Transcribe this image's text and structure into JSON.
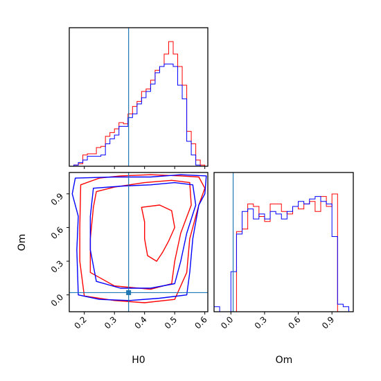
{
  "chart_data": {
    "type": "corner",
    "truth": {
      "H0": 0.347,
      "Om": 0.02
    },
    "colors": {
      "series_a": "#ff0000",
      "series_b": "#0000ff",
      "truth": "#1f77b4"
    },
    "panels": [
      {
        "id": "H0-hist",
        "type": "step-histogram",
        "xlim": [
          0.15,
          0.61
        ],
        "bin_edges": [
          0.15,
          0.165,
          0.18,
          0.195,
          0.21,
          0.225,
          0.24,
          0.255,
          0.27,
          0.285,
          0.3,
          0.315,
          0.33,
          0.345,
          0.36,
          0.375,
          0.39,
          0.405,
          0.42,
          0.435,
          0.45,
          0.465,
          0.48,
          0.495,
          0.51,
          0.525,
          0.54,
          0.555,
          0.57,
          0.585,
          0.6
        ],
        "series": [
          {
            "color": "red",
            "counts": [
              0.0,
              0.01,
              0.02,
              0.09,
              0.1,
              0.1,
              0.15,
              0.16,
              0.24,
              0.27,
              0.3,
              0.35,
              0.34,
              0.42,
              0.48,
              0.52,
              0.6,
              0.62,
              0.69,
              0.77,
              0.8,
              0.9,
              1.0,
              0.9,
              0.8,
              0.65,
              0.28,
              0.18,
              0.05,
              0.01
            ]
          },
          {
            "color": "blue",
            "counts": [
              0.0,
              0.01,
              0.03,
              0.05,
              0.08,
              0.08,
              0.08,
              0.09,
              0.18,
              0.22,
              0.25,
              0.32,
              0.32,
              0.39,
              0.42,
              0.5,
              0.55,
              0.6,
              0.66,
              0.75,
              0.8,
              0.82,
              0.82,
              0.8,
              0.65,
              0.54,
              0.2,
              0.09,
              0.01,
              0.0
            ]
          }
        ]
      },
      {
        "id": "H0-Om-contour",
        "type": "contour",
        "xlim": [
          0.15,
          0.61
        ],
        "ylim": [
          -0.15,
          1.09
        ],
        "xticks": [
          "0.2",
          "0.3",
          "0.4",
          "0.5",
          "0.6"
        ],
        "yticks": [
          "0.0",
          "0.3",
          "0.6",
          "0.9"
        ],
        "xlabel": "H0",
        "ylabel": "Om",
        "series": [
          {
            "color": "red",
            "contours": [
              [
                [
                  0.188,
                  0.98
                ],
                [
                  0.25,
                  1.04
                ],
                [
                  0.32,
                  1.06
                ],
                [
                  0.42,
                  1.07
                ],
                [
                  0.52,
                  1.06
                ],
                [
                  0.58,
                  1.05
                ],
                [
                  0.6,
                  0.95
                ],
                [
                  0.58,
                  0.8
                ],
                [
                  0.55,
                  0.5
                ],
                [
                  0.54,
                  0.2
                ],
                [
                  0.5,
                  -0.04
                ],
                [
                  0.4,
                  -0.07
                ],
                [
                  0.3,
                  -0.05
                ],
                [
                  0.2,
                  -0.01
                ],
                [
                  0.185,
                  0.3
                ],
                [
                  0.185,
                  0.6
                ]
              ],
              [
                [
                  0.24,
                  0.92
                ],
                [
                  0.3,
                  0.96
                ],
                [
                  0.4,
                  1.0
                ],
                [
                  0.49,
                  1.02
                ],
                [
                  0.55,
                  1.0
                ],
                [
                  0.555,
                  0.8
                ],
                [
                  0.52,
                  0.55
                ],
                [
                  0.5,
                  0.3
                ],
                [
                  0.49,
                  0.1
                ],
                [
                  0.42,
                  0.05
                ],
                [
                  0.3,
                  0.08
                ],
                [
                  0.22,
                  0.2
                ],
                [
                  0.22,
                  0.5
                ],
                [
                  0.23,
                  0.78
                ]
              ],
              [
                [
                  0.39,
                  0.78
                ],
                [
                  0.45,
                  0.8
                ],
                [
                  0.49,
                  0.75
                ],
                [
                  0.5,
                  0.6
                ],
                [
                  0.48,
                  0.48
                ],
                [
                  0.46,
                  0.38
                ],
                [
                  0.44,
                  0.3
                ],
                [
                  0.41,
                  0.35
                ],
                [
                  0.4,
                  0.5
                ],
                [
                  0.4,
                  0.65
                ]
              ]
            ]
          },
          {
            "color": "blue",
            "contours": [
              [
                [
                  0.17,
                  1.04
                ],
                [
                  0.3,
                  1.05
                ],
                [
                  0.42,
                  1.05
                ],
                [
                  0.52,
                  1.07
                ],
                [
                  0.605,
                  1.06
                ],
                [
                  0.6,
                  0.9
                ],
                [
                  0.58,
                  0.8
                ],
                [
                  0.56,
                  0.5
                ],
                [
                  0.55,
                  0.2
                ],
                [
                  0.54,
                  0.0
                ],
                [
                  0.45,
                  -0.03
                ],
                [
                  0.35,
                  -0.05
                ],
                [
                  0.25,
                  -0.04
                ],
                [
                  0.18,
                  0.0
                ],
                [
                  0.175,
                  0.4
                ],
                [
                  0.18,
                  0.7
                ],
                [
                  0.16,
                  0.9
                ]
              ],
              [
                [
                  0.23,
                  0.95
                ],
                [
                  0.33,
                  0.97
                ],
                [
                  0.42,
                  0.98
                ],
                [
                  0.5,
                  1.0
                ],
                [
                  0.56,
                  0.98
                ],
                [
                  0.57,
                  0.8
                ],
                [
                  0.54,
                  0.55
                ],
                [
                  0.52,
                  0.3
                ],
                [
                  0.5,
                  0.1
                ],
                [
                  0.42,
                  0.06
                ],
                [
                  0.32,
                  0.06
                ],
                [
                  0.24,
                  0.12
                ],
                [
                  0.22,
                  0.4
                ],
                [
                  0.22,
                  0.7
                ]
              ]
            ]
          }
        ]
      },
      {
        "id": "Om-hist",
        "type": "step-histogram",
        "xlim": [
          -0.15,
          1.09
        ],
        "xticks": [
          "0.0",
          "0.3",
          "0.6",
          "0.9"
        ],
        "xlabel": "Om",
        "bin_edges": [
          -0.15,
          -0.1,
          -0.05,
          0.0,
          0.05,
          0.1,
          0.15,
          0.2,
          0.25,
          0.3,
          0.35,
          0.4,
          0.45,
          0.5,
          0.55,
          0.6,
          0.65,
          0.7,
          0.75,
          0.8,
          0.85,
          0.9,
          0.95,
          1.0,
          1.05
        ],
        "series": [
          {
            "color": "red",
            "counts": [
              0.0,
              0.0,
              0.0,
              0.0,
              0.64,
              0.66,
              0.86,
              0.84,
              0.76,
              0.72,
              0.86,
              0.86,
              0.8,
              0.78,
              0.84,
              0.82,
              0.86,
              0.88,
              0.8,
              0.92,
              0.84,
              0.94,
              0.0,
              0.0
            ]
          },
          {
            "color": "blue",
            "counts": [
              0.04,
              0.0,
              0.0,
              0.32,
              0.62,
              0.8,
              0.82,
              0.74,
              0.78,
              0.74,
              0.8,
              0.78,
              0.74,
              0.8,
              0.84,
              0.88,
              0.86,
              0.9,
              0.92,
              0.88,
              0.86,
              0.6,
              0.06,
              0.04
            ]
          }
        ]
      }
    ]
  }
}
